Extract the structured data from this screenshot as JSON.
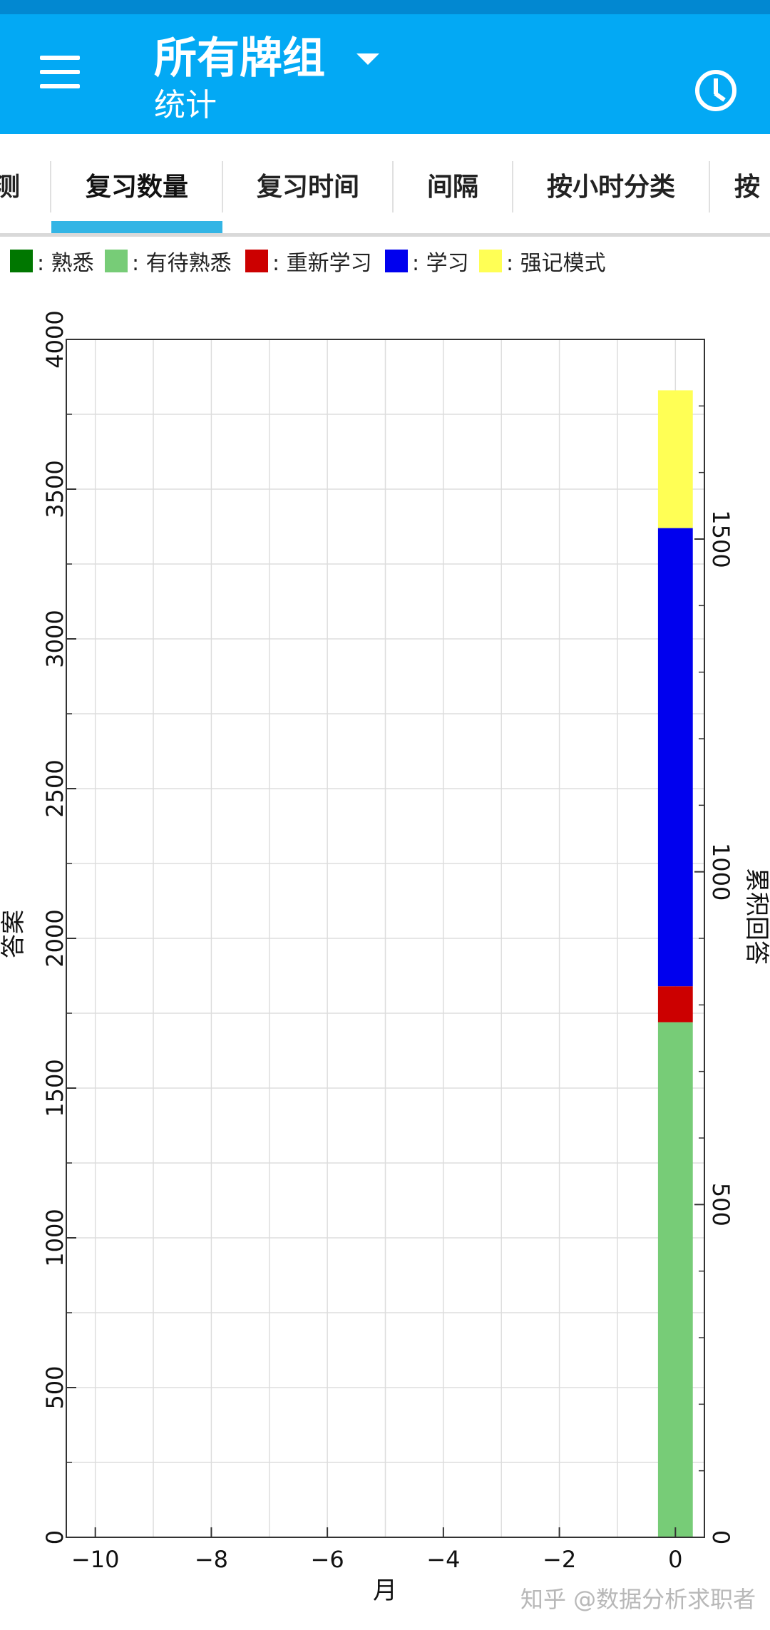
{
  "app": {
    "title": "所有牌组",
    "subtitle": "统计",
    "icons": {
      "menu": "hamburger-menu-icon",
      "dropdown": "caret-down-icon",
      "clock": "clock-icon"
    },
    "colors": {
      "appbar": "#03a9f4",
      "statusbar": "#0288d1",
      "tab_indicator": "#33b5e5"
    }
  },
  "tabs": [
    {
      "label": "测",
      "selected": false
    },
    {
      "label": "复习数量",
      "selected": true
    },
    {
      "label": "复习时间",
      "selected": false
    },
    {
      "label": "间隔",
      "selected": false
    },
    {
      "label": "按小时分类",
      "selected": false
    },
    {
      "label": "按",
      "selected": false
    }
  ],
  "legend": [
    {
      "label": ": 熟悉",
      "color": "#007700"
    },
    {
      "label": ": 有待熟悉",
      "color": "#77cc77"
    },
    {
      "label": ": 重新学习",
      "color": "#cc0000"
    },
    {
      "label": ": 学习",
      "color": "#0000ee"
    },
    {
      "label": ": 强记模式",
      "color": "#ffff55"
    }
  ],
  "chart_data": {
    "type": "bar",
    "stacked": true,
    "xlabel": "月",
    "ylabel": "答案",
    "y2label": "累积回答",
    "xlim": [
      -10.5,
      0.5
    ],
    "ylim": [
      0,
      4000
    ],
    "y2lim": [
      0,
      1800
    ],
    "xticks": [
      "-10",
      "-8",
      "-6",
      "-4",
      "-2",
      "0"
    ],
    "yticks": [
      "0",
      "500",
      "1000",
      "1500",
      "2000",
      "2500",
      "3000",
      "3500",
      "4000"
    ],
    "y2ticks": [
      "0",
      "500",
      "1000",
      "1500"
    ],
    "grid": true,
    "x": [
      0
    ],
    "series": [
      {
        "name": "熟悉",
        "color": "#007700",
        "values": [
          0
        ]
      },
      {
        "name": "有待熟悉",
        "color": "#77cc77",
        "values": [
          1720
        ]
      },
      {
        "name": "重新学习",
        "color": "#cc0000",
        "values": [
          120
        ]
      },
      {
        "name": "学习",
        "color": "#0000ee",
        "values": [
          1530
        ]
      },
      {
        "name": "强记模式",
        "color": "#ffff55",
        "values": [
          460
        ]
      }
    ]
  },
  "watermark": "知乎 @数据分析求职者"
}
